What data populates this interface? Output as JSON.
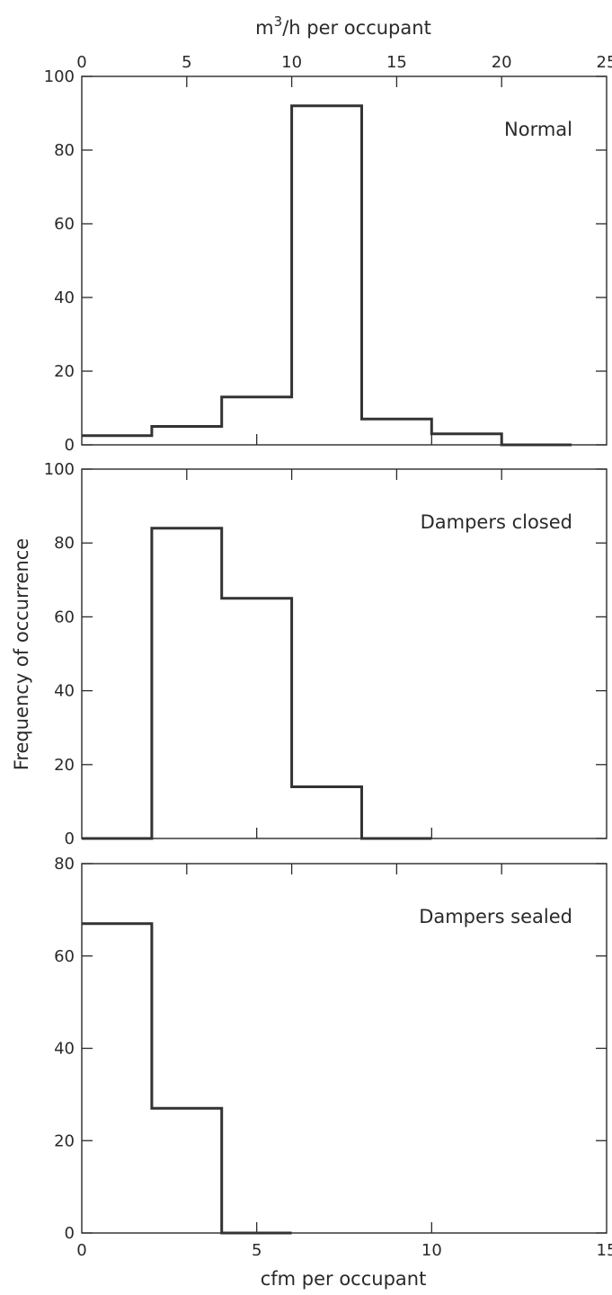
{
  "chart_data": {
    "type": "histogram",
    "x_axis": {
      "label": "cfm per occupant",
      "range": [
        0,
        15
      ],
      "ticks": [
        0,
        5,
        10,
        15
      ],
      "tick_labels": [
        "0",
        "5",
        "10",
        "15"
      ]
    },
    "x_axis_top": {
      "label": "m³/h per occupant",
      "label_base": "m",
      "label_superscript": "3",
      "label_rest": "/h per occupant",
      "range": [
        0,
        25
      ],
      "ticks": [
        0,
        5,
        10,
        15,
        20,
        25
      ],
      "tick_labels": [
        "0",
        "5",
        "10",
        "15",
        "20",
        "25"
      ]
    },
    "y_axis": {
      "label": "Frequency of occurrence"
    },
    "bin_edges": [
      0,
      2,
      4,
      6,
      8,
      10,
      12,
      14
    ],
    "panels": [
      {
        "label": "Normal",
        "ylim": [
          0,
          100
        ],
        "yticks": [
          0,
          20,
          40,
          60,
          80,
          100
        ],
        "ytick_labels": [
          "0",
          "20",
          "40",
          "60",
          "80",
          "100"
        ],
        "bins": [
          {
            "x0": -0.5,
            "x1": 2,
            "value": 2.5
          },
          {
            "x0": 2,
            "x1": 4,
            "value": 5
          },
          {
            "x0": 4,
            "x1": 6,
            "value": 13
          },
          {
            "x0": 6,
            "x1": 8,
            "value": 92
          },
          {
            "x0": 8,
            "x1": 10,
            "value": 7
          },
          {
            "x0": 10,
            "x1": 12,
            "value": 3
          },
          {
            "x0": 12,
            "x1": 14,
            "value": 0
          }
        ]
      },
      {
        "label": "Dampers closed",
        "ylim": [
          0,
          100
        ],
        "yticks": [
          0,
          20,
          40,
          60,
          80,
          100
        ],
        "ytick_labels": [
          "0",
          "20",
          "40",
          "60",
          "80",
          "100"
        ],
        "bins": [
          {
            "x0": 0,
            "x1": 2,
            "value": 0
          },
          {
            "x0": 2,
            "x1": 4,
            "value": 84
          },
          {
            "x0": 4,
            "x1": 6,
            "value": 65
          },
          {
            "x0": 6,
            "x1": 8,
            "value": 14
          },
          {
            "x0": 8,
            "x1": 10,
            "value": 0
          }
        ]
      },
      {
        "label": "Dampers sealed",
        "ylim": [
          0,
          80
        ],
        "yticks": [
          0,
          20,
          40,
          60,
          80
        ],
        "ytick_labels": [
          "0",
          "20",
          "40",
          "60",
          "80"
        ],
        "bins": [
          {
            "x0": 0,
            "x1": 2,
            "value": 67
          },
          {
            "x0": 2,
            "x1": 4,
            "value": 27
          },
          {
            "x0": 4,
            "x1": 6,
            "value": 0
          }
        ]
      }
    ],
    "grid": false,
    "legend": "none"
  }
}
